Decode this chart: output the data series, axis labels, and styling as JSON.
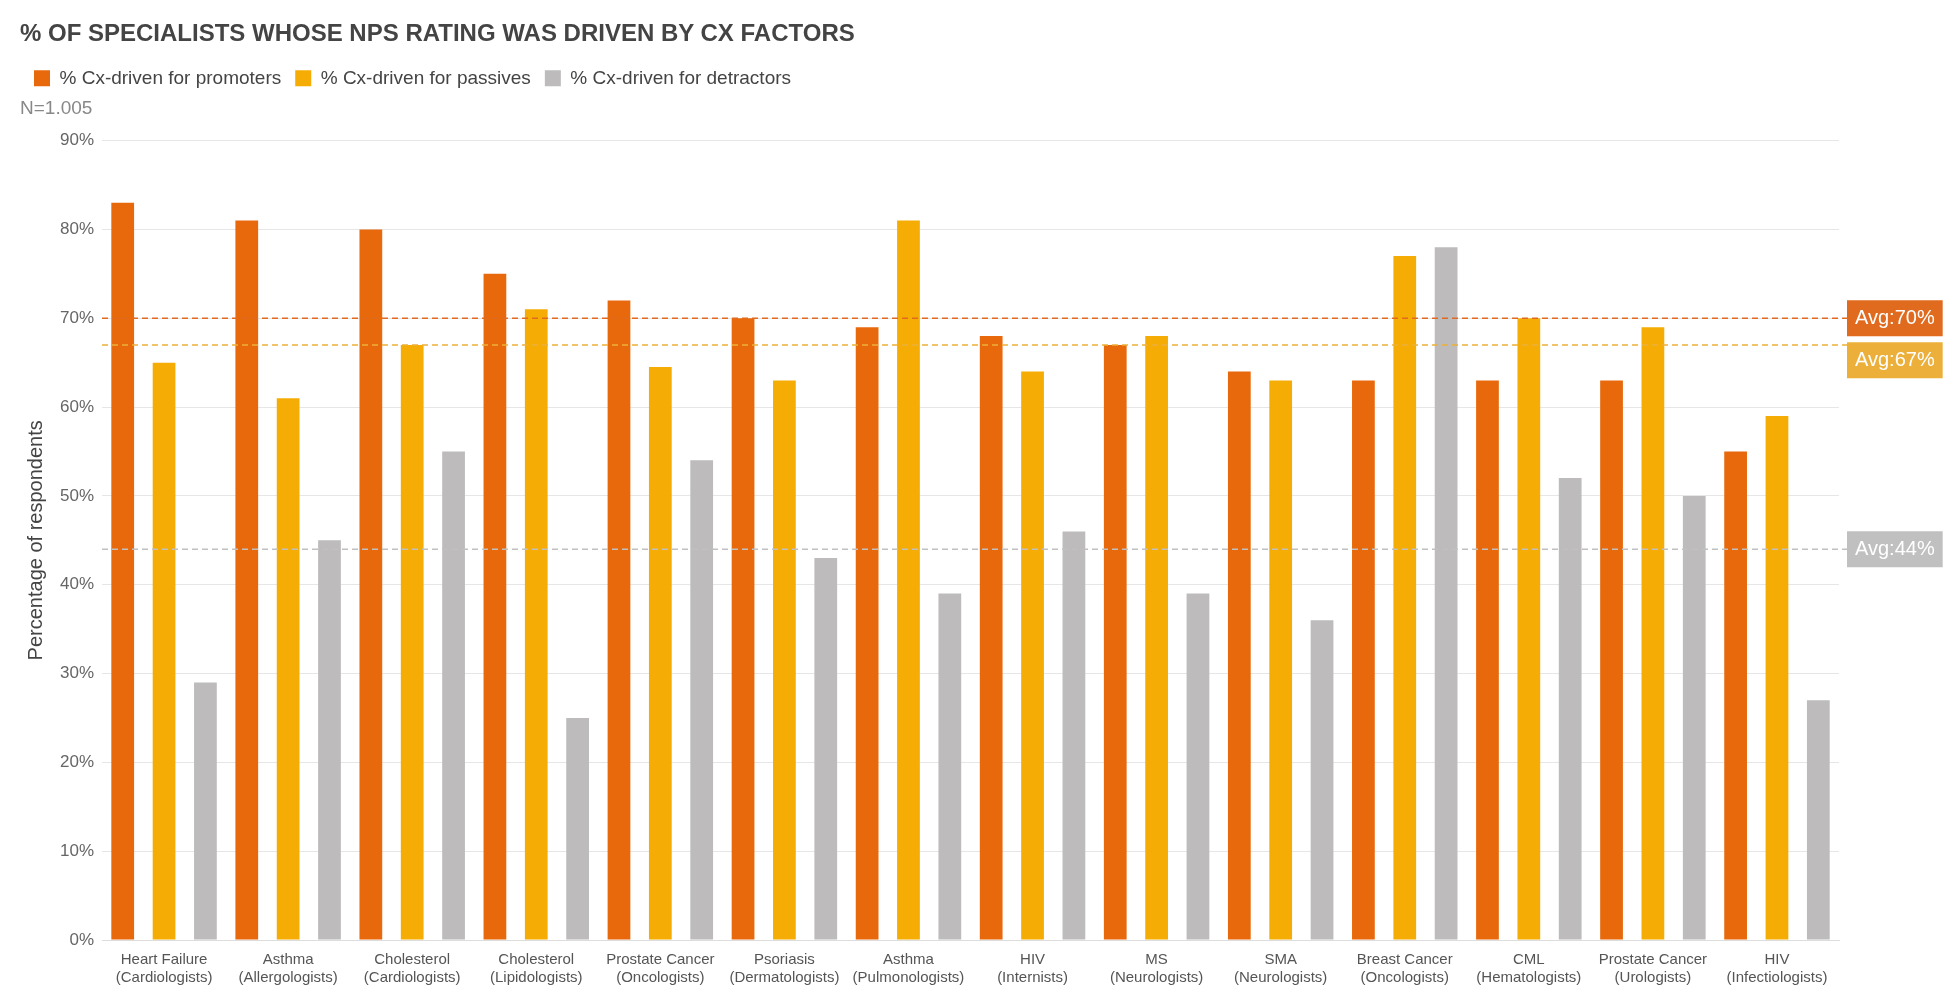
{
  "chart_data": {
    "type": "bar",
    "title": "% OF SPECIALISTS WHOSE NPS RATING WAS DRIVEN BY CX FACTORS",
    "subtitle": "N=1.005",
    "ylabel": "Percentage of respondents",
    "categories": [
      [
        "Heart Failure",
        "(Cardiologists)"
      ],
      [
        "Asthma",
        "(Allergologists)"
      ],
      [
        "Cholesterol",
        "(Cardiologists)"
      ],
      [
        "Cholesterol",
        "(Lipidologists)"
      ],
      [
        "Prostate Cancer",
        "(Oncologists)"
      ],
      [
        "Psoriasis",
        "(Dermatologists)"
      ],
      [
        "Asthma",
        "(Pulmonologists)"
      ],
      [
        "HIV",
        "(Internists)"
      ],
      [
        "MS",
        "(Neurologists)"
      ],
      [
        "SMA",
        "(Neurologists)"
      ],
      [
        "Breast Cancer",
        "(Oncologists)"
      ],
      [
        "CML",
        "(Hematologists)"
      ],
      [
        "Prostate Cancer",
        "(Urologists)"
      ],
      [
        "HIV",
        "(Infectiologists)"
      ]
    ],
    "series": [
      {
        "name": "% Cx-driven for promoters",
        "color": "#e8690b",
        "values": [
          83,
          81,
          80,
          75,
          72,
          70,
          69,
          68,
          67,
          64,
          63,
          63,
          63,
          55
        ]
      },
      {
        "name": "% Cx-driven for passives",
        "color": "#f5ad05",
        "values": [
          65,
          61,
          67,
          71,
          64.5,
          63,
          81,
          64,
          68,
          63,
          77,
          70,
          69,
          59
        ]
      },
      {
        "name": "% Cx-driven for detractors",
        "color": "#bdbbbb",
        "values": [
          29,
          45,
          55,
          25,
          54,
          43,
          39,
          46,
          39,
          36,
          78,
          52,
          50,
          27
        ]
      }
    ],
    "ylim": [
      0,
      90
    ],
    "yticks": [
      {
        "value": 0,
        "label": "0%"
      },
      {
        "value": 10,
        "label": "10%"
      },
      {
        "value": 20,
        "label": "20%"
      },
      {
        "value": 30,
        "label": "30%"
      },
      {
        "value": 40,
        "label": "40%"
      },
      {
        "value": 50,
        "label": "50%"
      },
      {
        "value": 60,
        "label": "60%"
      },
      {
        "value": 70,
        "label": "70%"
      },
      {
        "value": 80,
        "label": "80%"
      },
      {
        "value": 90,
        "label": "90%"
      }
    ],
    "ref_lines": [
      {
        "axis": "y",
        "value": 70,
        "label": "Avg:70%",
        "color": "#e06a1e",
        "line_style": "dashed"
      },
      {
        "axis": "y",
        "value": 67,
        "label": "Avg:67%",
        "color": "#ecb03a",
        "line_style": "dashed"
      },
      {
        "axis": "y",
        "value": 44,
        "label": "Avg:44%",
        "color": "#c0c0c0",
        "line_style": "dashed"
      }
    ],
    "grid": "y",
    "legend": "top left"
  }
}
